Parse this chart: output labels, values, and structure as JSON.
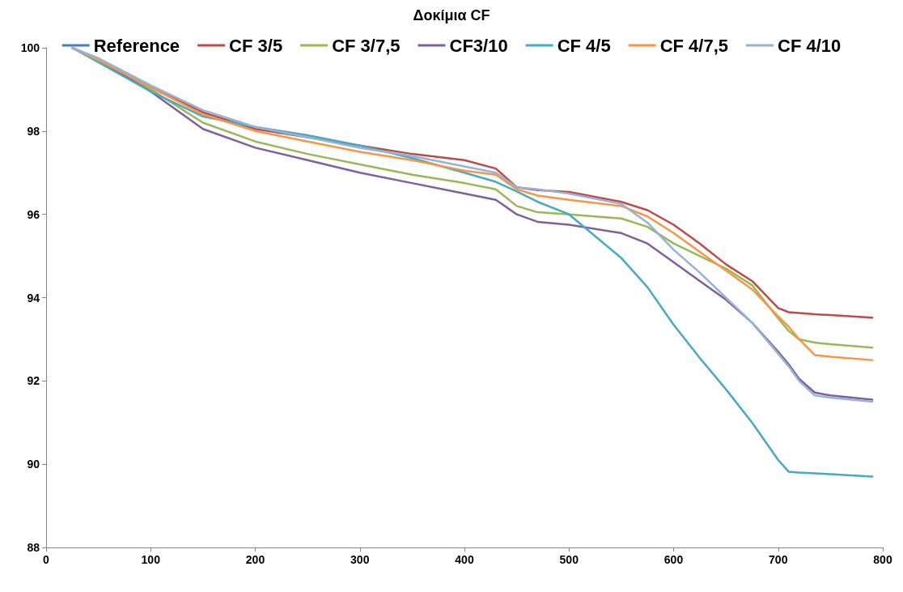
{
  "chart_data": {
    "type": "line",
    "title": "Δοκίμια CF",
    "x": [
      25,
      50,
      100,
      150,
      200,
      250,
      300,
      350,
      400,
      430,
      450,
      470,
      500,
      550,
      575,
      600,
      625,
      650,
      675,
      700,
      710,
      720,
      735,
      750,
      790
    ],
    "series": [
      {
        "name": "Reference",
        "color": "#4a7ebb",
        "values": [
          null,
          null,
          null,
          null,
          null,
          null,
          null,
          null,
          null,
          null,
          null,
          null,
          null,
          null,
          null,
          null,
          null,
          null,
          null,
          null,
          null,
          null,
          null,
          null,
          null
        ]
      },
      {
        "name": "CF 3/5",
        "color": "#be4b48",
        "values": [
          100,
          99.7,
          99.05,
          98.45,
          98.05,
          97.85,
          97.65,
          97.45,
          97.3,
          97.1,
          96.65,
          96.58,
          96.54,
          96.3,
          96.1,
          95.75,
          95.3,
          94.8,
          94.4,
          93.75,
          93.65,
          93.63,
          93.6,
          93.58,
          93.52
        ]
      },
      {
        "name": "CF 3/7,5",
        "color": "#98b954",
        "values": [
          100,
          99.7,
          99.0,
          98.2,
          97.75,
          97.45,
          97.2,
          96.95,
          96.75,
          96.6,
          96.2,
          96.05,
          96.0,
          95.9,
          95.7,
          95.3,
          95.0,
          94.7,
          94.3,
          93.5,
          93.2,
          93.0,
          92.92,
          92.88,
          92.8
        ]
      },
      {
        "name": "CF3/10",
        "color": "#7d60a0",
        "values": [
          100,
          99.7,
          98.95,
          98.05,
          97.6,
          97.3,
          97.0,
          96.75,
          96.5,
          96.35,
          96.0,
          95.82,
          95.75,
          95.55,
          95.3,
          94.85,
          94.4,
          93.95,
          93.4,
          92.7,
          92.4,
          92.05,
          91.72,
          91.65,
          91.55
        ]
      },
      {
        "name": "CF 4/5",
        "color": "#46aac5",
        "values": [
          100,
          99.65,
          98.95,
          98.35,
          98.1,
          97.9,
          97.65,
          97.35,
          97.0,
          96.78,
          96.55,
          96.3,
          96.0,
          94.95,
          94.25,
          93.35,
          92.55,
          91.8,
          91.0,
          90.1,
          89.82,
          89.8,
          89.78,
          89.76,
          89.7
        ]
      },
      {
        "name": "CF 4/7,5",
        "color": "#f79646",
        "values": [
          100,
          99.7,
          99.05,
          98.4,
          98.0,
          97.75,
          97.5,
          97.3,
          97.05,
          96.95,
          96.6,
          96.45,
          96.35,
          96.2,
          95.95,
          95.55,
          95.1,
          94.65,
          94.2,
          93.55,
          93.3,
          93.0,
          92.62,
          92.58,
          92.5
        ]
      },
      {
        "name": "CF 4/10",
        "color": "#95b3d7",
        "values": [
          100,
          99.75,
          99.1,
          98.5,
          98.1,
          97.85,
          97.6,
          97.4,
          97.15,
          97.0,
          96.65,
          96.6,
          96.5,
          96.25,
          95.8,
          95.15,
          94.6,
          94.0,
          93.4,
          92.65,
          92.35,
          92.0,
          91.65,
          91.6,
          91.5
        ]
      }
    ],
    "xlim": [
      0,
      800
    ],
    "xticks": [
      0,
      100,
      200,
      300,
      400,
      500,
      600,
      700,
      800
    ],
    "ylim": [
      88,
      100
    ],
    "yticks": [
      88,
      90,
      92,
      94,
      96,
      98,
      100
    ],
    "grid": false,
    "legend": "top",
    "marker": "none",
    "line_style": "solid"
  }
}
